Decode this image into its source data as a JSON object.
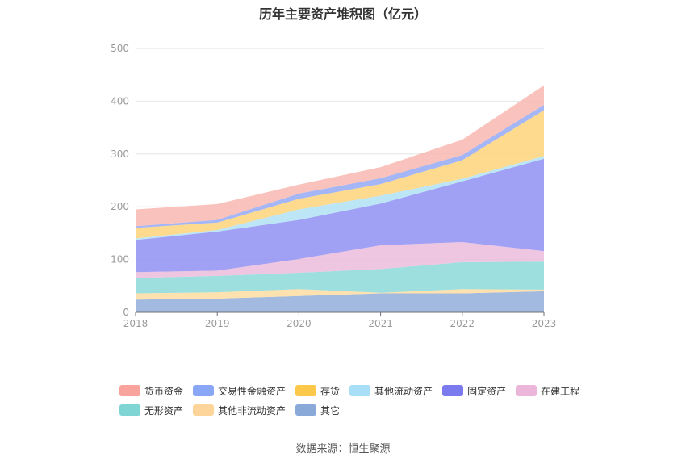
{
  "chart_data": {
    "type": "area",
    "stacked": true,
    "title": "历年主要资产堆积图（亿元）",
    "categories": [
      "2018",
      "2019",
      "2020",
      "2021",
      "2022",
      "2023"
    ],
    "ylim": [
      0,
      500
    ],
    "yticks": [
      0,
      100,
      200,
      300,
      400,
      500
    ],
    "grid": true,
    "legend_position": "bottom",
    "series": [
      {
        "name": "其它",
        "color": "#93aedb",
        "values": [
          24,
          26,
          31,
          36,
          36,
          40
        ]
      },
      {
        "name": "其他非流动资产",
        "color": "#fddca0",
        "values": [
          12,
          12,
          13,
          1,
          8,
          3
        ]
      },
      {
        "name": "无形资产",
        "color": "#8cd9d9",
        "values": [
          29,
          31,
          31,
          45,
          51,
          53
        ]
      },
      {
        "name": "在建工程",
        "color": "#ebbcdc",
        "values": [
          11,
          10,
          26,
          45,
          38,
          20
        ]
      },
      {
        "name": "固定资产",
        "color": "#8f8ff2",
        "values": [
          61,
          74,
          74,
          79,
          115,
          175
        ]
      },
      {
        "name": "其他流动资产",
        "color": "#b0e2f5",
        "values": [
          3,
          3,
          20,
          15,
          5,
          5
        ]
      },
      {
        "name": "存货",
        "color": "#fdd47a",
        "values": [
          20,
          14,
          20,
          22,
          35,
          87
        ]
      },
      {
        "name": "交易性金融资产",
        "color": "#94a9f5",
        "values": [
          3,
          5,
          10,
          11,
          10,
          10
        ]
      },
      {
        "name": "货币资金",
        "color": "#f8b7b0",
        "values": [
          32,
          30,
          17,
          21,
          29,
          37
        ]
      }
    ]
  },
  "legend": {
    "row1": [
      {
        "label": "货币资金",
        "color": "#f8a39b"
      },
      {
        "label": "交易性金融资产",
        "color": "#8aa6f7"
      },
      {
        "label": "存货",
        "color": "#fcc84a"
      },
      {
        "label": "其他流动资产",
        "color": "#a8def6"
      },
      {
        "label": "固定资产",
        "color": "#7b7bef"
      },
      {
        "label": "在建工程",
        "color": "#ebb6d9"
      }
    ],
    "row2": [
      {
        "label": "无形资产",
        "color": "#7fd4d4"
      },
      {
        "label": "其他非流动资产",
        "color": "#fdd59a"
      },
      {
        "label": "其它",
        "color": "#8aa8d8"
      }
    ]
  },
  "source": "数据来源：恒生聚源"
}
